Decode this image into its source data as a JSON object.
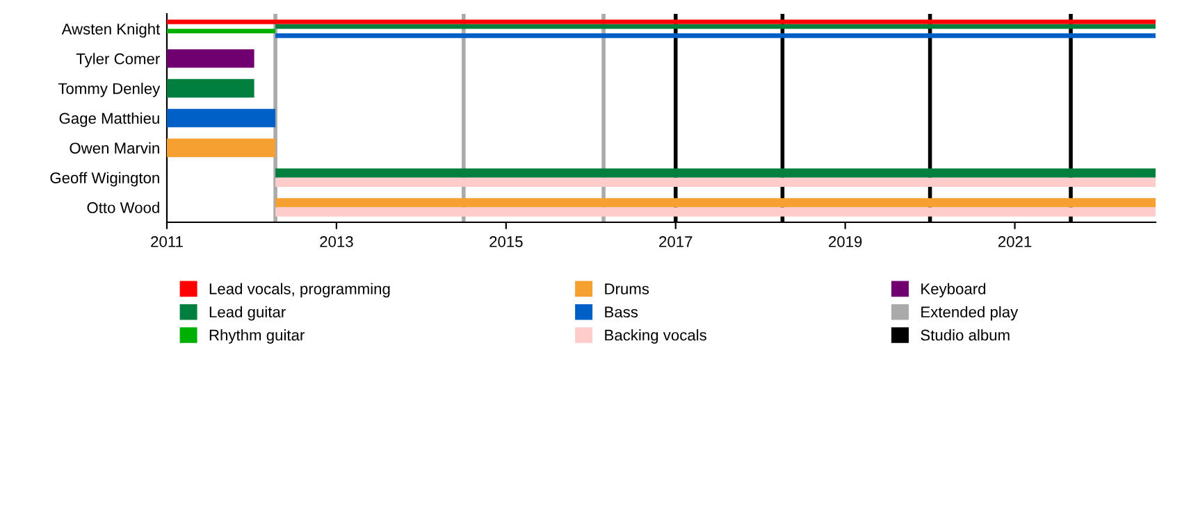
{
  "chart_data": {
    "type": "bar",
    "orientation": "horizontal",
    "categories": [
      "Awsten Knight",
      "Tyler Comer",
      "Tommy Denley",
      "Gage Matthieu",
      "Owen Marvin",
      "Geoff Wigington",
      "Otto Wood"
    ],
    "series": [
      {
        "name": "Lead vocals, programming",
        "color": "#ff0000",
        "base": [
          2011,
          null,
          null,
          null,
          null,
          null,
          null
        ],
        "values": [
          11.66,
          null,
          null,
          null,
          null,
          null,
          null
        ]
      },
      {
        "name": "Lead guitar",
        "color": "#007f3f",
        "base": [
          2012.28,
          null,
          2011,
          null,
          null,
          2012.28,
          null
        ],
        "values": [
          10.38,
          null,
          1.03,
          null,
          null,
          10.38,
          null
        ]
      },
      {
        "name": "Rhythm guitar",
        "color": "#00b000",
        "base": [
          2011,
          null,
          null,
          null,
          null,
          null,
          null
        ],
        "values": [
          1.28,
          null,
          null,
          null,
          null,
          null,
          null
        ]
      },
      {
        "name": "Drums",
        "color": "#f5a030",
        "base": [
          null,
          null,
          null,
          null,
          2011,
          null,
          2012.28
        ],
        "values": [
          null,
          null,
          null,
          null,
          1.28,
          null,
          10.38
        ]
      },
      {
        "name": "Bass",
        "color": "#0060c8",
        "base": [
          2012.28,
          null,
          null,
          2011,
          null,
          null,
          null
        ],
        "values": [
          10.38,
          null,
          null,
          1.28,
          null,
          null,
          null
        ]
      },
      {
        "name": "Backing vocals",
        "color": "#ffcccc",
        "base": [
          null,
          null,
          null,
          null,
          null,
          2012.28,
          2012.28
        ],
        "values": [
          null,
          null,
          null,
          null,
          null,
          10.38,
          10.38
        ]
      },
      {
        "name": "Keyboard",
        "color": "#700070",
        "base": [
          null,
          2011,
          null,
          null,
          null,
          null,
          null
        ],
        "values": [
          null,
          1.03,
          null,
          null,
          null,
          null,
          null
        ]
      }
    ],
    "ref_lines": [
      {
        "axis": "x",
        "value": 2012.28,
        "label": "Extended play",
        "color": "#aaaaaa"
      },
      {
        "axis": "x",
        "value": 2014.5,
        "color": "#aaaaaa"
      },
      {
        "axis": "x",
        "value": 2016.15,
        "color": "#aaaaaa"
      },
      {
        "axis": "x",
        "value": 2017.0,
        "label": "Studio album",
        "color": "#000000"
      },
      {
        "axis": "x",
        "value": 2018.26,
        "color": "#000000"
      },
      {
        "axis": "x",
        "value": 2020.0,
        "color": "#000000"
      },
      {
        "axis": "x",
        "value": 2021.66,
        "color": "#000000"
      }
    ],
    "xlim": [
      2011,
      2022.66
    ],
    "xticks": [
      2011,
      2013,
      2015,
      2017,
      2019,
      2021
    ],
    "grid": false,
    "legend": "bottom"
  }
}
